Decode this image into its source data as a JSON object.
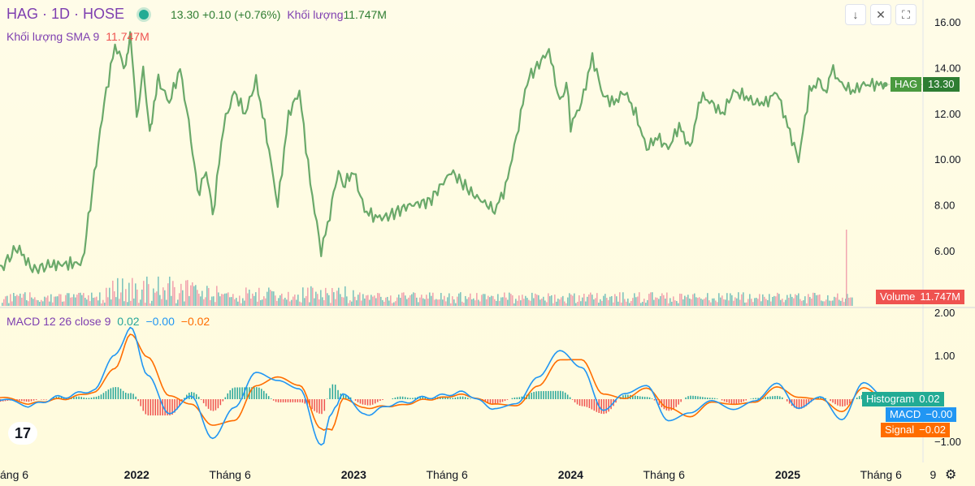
{
  "header": {
    "symbol_title": "HAG · 1D · HOSE",
    "last": "13.30",
    "change": "+0.10 (+0.76%)",
    "volume_label": "Khối lượng",
    "volume_value": "11.747M",
    "sma_label": "Khối lượng SMA 9",
    "sma_value": "11.747M"
  },
  "macd_header": {
    "label": "MACD 12 26 close 9",
    "hist": "0.02",
    "macd": "−0.00",
    "signal": "−0.02"
  },
  "tags": {
    "price_symbol": "HAG",
    "price_value": "13.30",
    "volume_label": "Volume",
    "volume_value": "11.747M",
    "hist_label": "Histogram",
    "hist_value": "0.02",
    "macd_label": "MACD",
    "macd_value": "−0.00",
    "signal_label": "Signal",
    "signal_value": "−0.02"
  },
  "toolbar": {
    "down_icon": "arrow-down-icon",
    "collapse_icon": "collapse-icon",
    "settings_icon": "gear-icon"
  },
  "colors": {
    "price": "#6aa96a",
    "macd": "#2196f3",
    "signal": "#ff6d00",
    "hist_up": "#26a69a",
    "hist_down": "#ef5350",
    "vol_up": "#7fc4bd",
    "vol_down": "#f2a6b0"
  },
  "chart_data": [
    {
      "type": "line",
      "name": "price",
      "series": [
        {
          "name": "HAG",
          "x": [
            2021.37,
            2021.45,
            2021.52,
            2021.6,
            2021.75,
            2021.85,
            2021.9,
            2021.95,
            2021.97,
            2022.0,
            2022.03,
            2022.06,
            2022.08,
            2022.1,
            2022.15,
            2022.2,
            2022.25,
            2022.28,
            2022.32,
            2022.35,
            2022.4,
            2022.45,
            2022.5,
            2022.55,
            2022.6,
            2022.65,
            2022.7,
            2022.75,
            2022.8,
            2022.85,
            2022.9,
            2022.93,
            2022.96,
            2023.0,
            2023.05,
            2023.1,
            2023.15,
            2023.25,
            2023.35,
            2023.45,
            2023.55,
            2023.65,
            2023.7,
            2023.75,
            2023.8,
            2023.9,
            2023.95,
            2023.98,
            2024.0,
            2024.05,
            2024.1,
            2024.15,
            2024.2,
            2024.25,
            2024.3,
            2024.35,
            2024.4,
            2024.45,
            2024.5,
            2024.55,
            2024.6,
            2024.65,
            2024.7,
            2024.75,
            2024.8,
            2024.85,
            2024.9,
            2024.95,
            2025.0,
            2025.05,
            2025.1,
            2025.15,
            2025.18,
            2025.2,
            2025.25,
            2025.3,
            2025.35,
            2025.4,
            2025.45
          ],
          "values": [
            5.2,
            6.2,
            5.2,
            5.4,
            5.5,
            12.5,
            15.0,
            14.0,
            15.5,
            12.0,
            14.0,
            11.0,
            12.5,
            13.5,
            12.5,
            14.0,
            11.0,
            8.5,
            9.5,
            7.5,
            11.5,
            13.0,
            12.0,
            13.5,
            11.0,
            8.0,
            12.0,
            13.0,
            9.0,
            6.0,
            8.0,
            9.5,
            9.0,
            9.5,
            7.8,
            7.5,
            7.5,
            8.0,
            8.2,
            9.5,
            8.5,
            7.8,
            8.8,
            11.0,
            13.5,
            14.8,
            12.5,
            13.5,
            11.5,
            12.5,
            14.5,
            12.8,
            12.5,
            13.0,
            12.0,
            10.5,
            11.0,
            10.5,
            11.5,
            10.5,
            12.8,
            12.5,
            12.0,
            13.0,
            12.8,
            12.5,
            12.5,
            13.0,
            11.5,
            10.0,
            13.0,
            13.5,
            13.0,
            14.0,
            13.3,
            13.0,
            13.3,
            13.3,
            13.3
          ],
          "last": 13.3
        }
      ],
      "ylim": [
        4.5,
        16.3
      ],
      "yticks": [
        "16.00",
        "14.00",
        "12.00",
        "10.00",
        "8.00",
        "6.00"
      ],
      "xticks": [
        "áng 6",
        "2022",
        "Tháng 6",
        "2023",
        "Tháng 6",
        "2024",
        "Tháng 6",
        "2025",
        "Tháng 6",
        "9"
      ]
    },
    {
      "type": "line",
      "name": "macd",
      "series": [
        {
          "name": "MACD",
          "x": [
            2021.37,
            2021.5,
            2021.65,
            2021.8,
            2021.9,
            2021.97,
            2022.05,
            2022.15,
            2022.25,
            2022.35,
            2022.45,
            2022.55,
            2022.65,
            2022.75,
            2022.85,
            2022.9,
            2022.95,
            2023.05,
            2023.2,
            2023.35,
            2023.5,
            2023.65,
            2023.75,
            2023.85,
            2023.95,
            2024.05,
            2024.15,
            2024.25,
            2024.35,
            2024.45,
            2024.55,
            2024.65,
            2024.75,
            2024.85,
            2024.95,
            2025.05,
            2025.15,
            2025.25,
            2025.35,
            2025.45
          ],
          "values": [
            0.0,
            -0.15,
            0.05,
            0.2,
            1.0,
            1.65,
            0.6,
            -0.3,
            0.1,
            -0.9,
            -0.2,
            0.6,
            0.4,
            0.2,
            -1.1,
            -0.3,
            0.1,
            -0.35,
            -0.1,
            0.05,
            0.15,
            -0.2,
            -0.1,
            0.5,
            1.1,
            0.7,
            -0.3,
            0.1,
            0.3,
            -0.5,
            -0.3,
            0.0,
            -0.2,
            0.0,
            0.4,
            -0.2,
            0.05,
            -0.5,
            0.35,
            0.0
          ]
        },
        {
          "name": "Signal",
          "x": [
            2021.37,
            2021.5,
            2021.65,
            2021.8,
            2021.9,
            2021.97,
            2022.05,
            2022.15,
            2022.25,
            2022.35,
            2022.45,
            2022.55,
            2022.65,
            2022.75,
            2022.85,
            2022.9,
            2022.95,
            2023.05,
            2023.2,
            2023.35,
            2023.5,
            2023.65,
            2023.75,
            2023.85,
            2023.95,
            2024.05,
            2024.15,
            2024.25,
            2024.35,
            2024.45,
            2024.55,
            2024.65,
            2024.75,
            2024.85,
            2024.95,
            2025.05,
            2025.15,
            2025.25,
            2025.35,
            2025.45
          ],
          "values": [
            0.05,
            -0.1,
            0.0,
            0.15,
            0.7,
            1.5,
            1.0,
            0.1,
            -0.1,
            -0.6,
            -0.5,
            0.3,
            0.5,
            0.3,
            -0.7,
            -0.7,
            0.0,
            -0.2,
            -0.15,
            0.0,
            0.1,
            -0.1,
            -0.15,
            0.3,
            0.9,
            0.9,
            0.1,
            0.0,
            0.25,
            -0.2,
            -0.4,
            -0.05,
            -0.1,
            -0.05,
            0.3,
            0.05,
            0.0,
            -0.3,
            0.25,
            -0.02
          ]
        }
      ],
      "ylim": [
        -1.25,
        2.1
      ],
      "yticks": [
        "2.00",
        "1.00",
        "−1.00"
      ],
      "last": {
        "histogram": 0.02,
        "macd": -0.0,
        "signal": -0.02
      }
    }
  ]
}
